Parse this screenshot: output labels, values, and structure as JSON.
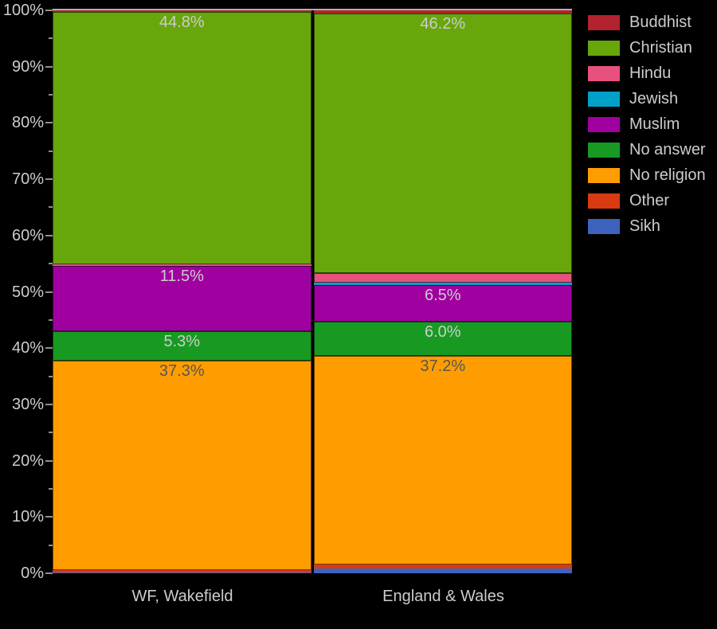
{
  "chart_data": {
    "type": "bar",
    "subtype": "100-percent-stacked-column",
    "title": "",
    "categories": [
      "WF, Wakefield",
      "England & Wales"
    ],
    "series": [
      {
        "name": "Buddhist",
        "color": "#b2232f",
        "values": [
          0.3,
          0.5
        ],
        "labels": [
          "",
          ""
        ]
      },
      {
        "name": "Christian",
        "color": "#67a70b",
        "values": [
          44.8,
          46.2
        ],
        "labels": [
          "44.8%",
          "46.2%"
        ]
      },
      {
        "name": "Hindu",
        "color": "#e8517e",
        "values": [
          0.3,
          1.7
        ],
        "labels": [
          "",
          ""
        ]
      },
      {
        "name": "Jewish",
        "color": "#00a0c8",
        "values": [
          0.1,
          0.5
        ],
        "labels": [
          "",
          ""
        ]
      },
      {
        "name": "Muslim",
        "color": "#a100a1",
        "values": [
          11.5,
          6.5
        ],
        "labels": [
          "11.5%",
          "6.5%"
        ]
      },
      {
        "name": "No answer",
        "color": "#189a22",
        "values": [
          5.3,
          6.0
        ],
        "labels": [
          "5.3%",
          "6.0%"
        ]
      },
      {
        "name": "No religion",
        "color": "#ff9d00",
        "values": [
          37.3,
          37.2
        ],
        "labels": [
          "37.3%",
          "37.2%"
        ],
        "label_color": "#555555"
      },
      {
        "name": "Other",
        "color": "#d93a12",
        "values": [
          0.3,
          0.6
        ],
        "labels": [
          "",
          ""
        ]
      },
      {
        "name": "Sikh",
        "color": "#3e63be",
        "values": [
          0.2,
          0.9
        ],
        "labels": [
          "",
          ""
        ]
      }
    ],
    "y_axis": {
      "range": [
        0,
        100
      ],
      "major_step": 10,
      "minor_step": 5,
      "tick_labels": [
        "0%",
        "10%",
        "20%",
        "30%",
        "40%",
        "50%",
        "60%",
        "70%",
        "80%",
        "90%",
        "100%"
      ]
    },
    "ylim": [
      0,
      100
    ],
    "grid": false,
    "legend_position": "top-right",
    "background": "#000000",
    "axis_text_color": "#cccccc",
    "label_color_light": "#cccccc",
    "label_color_dark": "#555555",
    "top_border_color": "#b0b0b0"
  }
}
